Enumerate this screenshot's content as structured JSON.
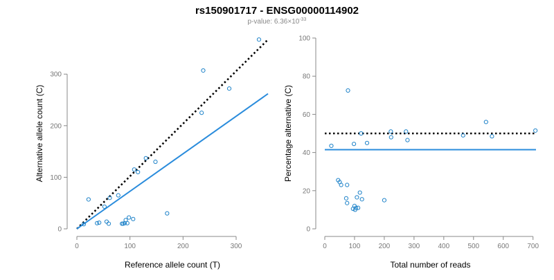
{
  "header": {
    "title": "rs150901717 - ENSG00000114902",
    "pvalue_prefix": "p-value: 6.36",
    "pvalue_times": "×",
    "pvalue_base": "10",
    "pvalue_exp": "-33"
  },
  "colors": {
    "points": "#1f83c9",
    "fit_line": "#2a8cdc",
    "reference_line": "#000000"
  },
  "chart_data": [
    {
      "type": "scatter",
      "title": "",
      "xlabel": "Reference allele count (T)",
      "ylabel": "Alternative allele count (C)",
      "xlim": [
        0,
        360
      ],
      "ylim": [
        0,
        370
      ],
      "x_ticks": [
        0,
        100,
        200,
        300
      ],
      "y_ticks": [
        0,
        100,
        200,
        300
      ],
      "grid": false,
      "points": [
        [
          13,
          9
        ],
        [
          22,
          57
        ],
        [
          38,
          11
        ],
        [
          42,
          12
        ],
        [
          52,
          43
        ],
        [
          56,
          14
        ],
        [
          60,
          10
        ],
        [
          62,
          60
        ],
        [
          78,
          65
        ],
        [
          85,
          10
        ],
        [
          87,
          10
        ],
        [
          90,
          11
        ],
        [
          92,
          17
        ],
        [
          95,
          11
        ],
        [
          98,
          22
        ],
        [
          106,
          19
        ],
        [
          108,
          115
        ],
        [
          115,
          110
        ],
        [
          130,
          137
        ],
        [
          148,
          130
        ],
        [
          170,
          30
        ],
        [
          235,
          225
        ],
        [
          238,
          307
        ],
        [
          287,
          272
        ],
        [
          343,
          367
        ]
      ],
      "lines": [
        {
          "kind": "dotted",
          "from": [
            0,
            0
          ],
          "to": [
            360,
            367
          ]
        },
        {
          "kind": "solid",
          "from": [
            0,
            0
          ],
          "to": [
            360,
            262
          ]
        }
      ]
    },
    {
      "type": "scatter",
      "title": "",
      "xlabel": "Total number of reads",
      "ylabel": "Percentage alternative (C)",
      "xlim": [
        0,
        710
      ],
      "ylim": [
        0,
        100
      ],
      "x_ticks": [
        0,
        100,
        200,
        300,
        400,
        500,
        600,
        700
      ],
      "y_ticks": [
        0,
        20,
        40,
        60,
        80,
        100
      ],
      "grid": false,
      "points": [
        [
          22,
          43.5
        ],
        [
          45,
          25.5
        ],
        [
          50,
          24.5
        ],
        [
          55,
          23
        ],
        [
          72,
          16
        ],
        [
          75,
          23
        ],
        [
          75,
          13.5
        ],
        [
          78,
          72.5
        ],
        [
          95,
          10.5
        ],
        [
          98,
          44.5
        ],
        [
          100,
          12
        ],
        [
          102,
          10
        ],
        [
          105,
          11
        ],
        [
          108,
          16.5
        ],
        [
          112,
          11
        ],
        [
          118,
          19
        ],
        [
          122,
          50
        ],
        [
          125,
          15.5
        ],
        [
          142,
          45
        ],
        [
          200,
          15
        ],
        [
          222,
          51
        ],
        [
          223,
          48
        ],
        [
          273,
          51
        ],
        [
          278,
          46.5
        ],
        [
          465,
          49
        ],
        [
          542,
          56
        ],
        [
          562,
          48.5
        ],
        [
          708,
          51.5
        ]
      ],
      "lines": [
        {
          "kind": "dotted",
          "from": [
            0,
            50
          ],
          "to": [
            710,
            50
          ]
        },
        {
          "kind": "solid",
          "from": [
            0,
            41.5
          ],
          "to": [
            710,
            41.5
          ]
        }
      ]
    }
  ]
}
